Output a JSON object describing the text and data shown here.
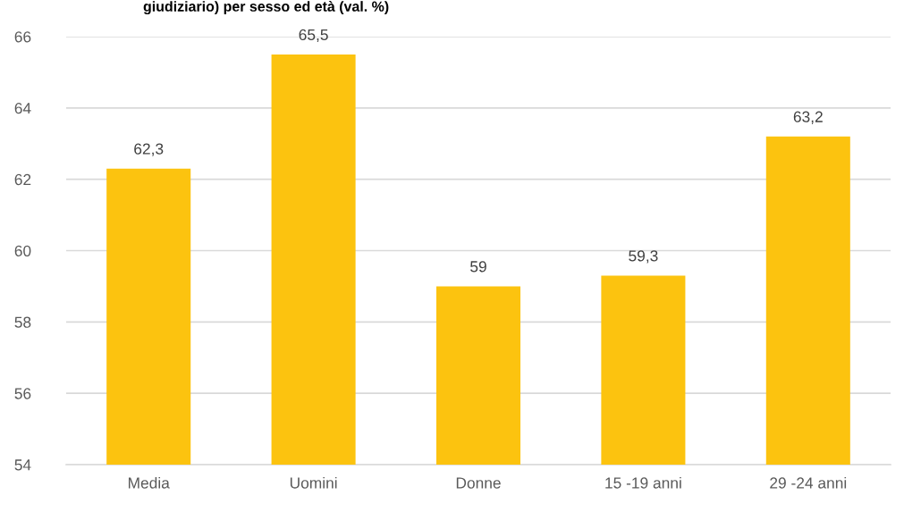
{
  "chart_data": {
    "type": "bar",
    "title": "giudiziario) per sesso ed età (val. %)",
    "categories": [
      "Media",
      "Uomini",
      "Donne",
      "15 -19 anni",
      "29 -24 anni"
    ],
    "values": [
      62.3,
      65.5,
      59,
      59.3,
      63.2
    ],
    "value_labels": [
      "62,3",
      "65,5",
      "59",
      "59,3",
      "63,2"
    ],
    "color": "#fcc30f",
    "ylim": [
      54,
      66
    ],
    "yticks": [
      54,
      56,
      58,
      60,
      62,
      64,
      66
    ],
    "grid": "y"
  }
}
